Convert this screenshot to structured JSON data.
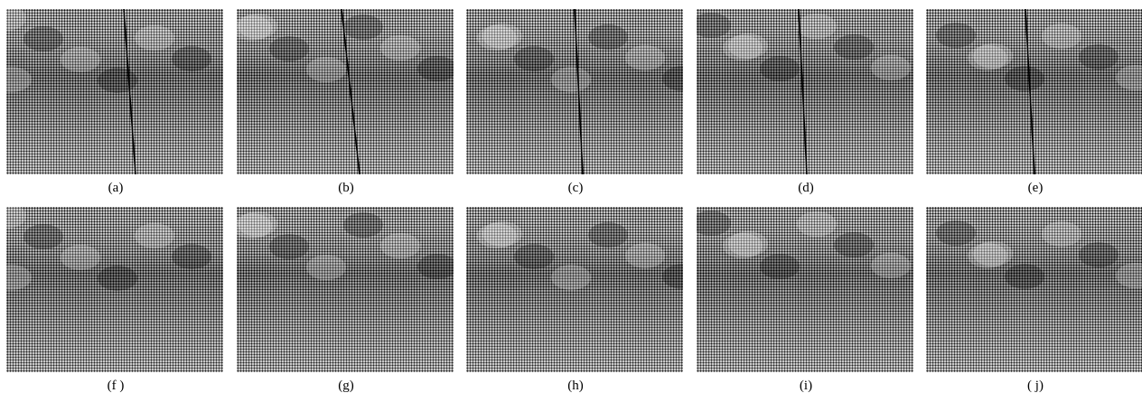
{
  "figure": {
    "rows": [
      [
        "(a)",
        "(b)",
        "(c)",
        "(d)",
        "(e)"
      ],
      [
        "(f )",
        "(g)",
        "(h)",
        "(i)",
        "( j)"
      ]
    ]
  }
}
